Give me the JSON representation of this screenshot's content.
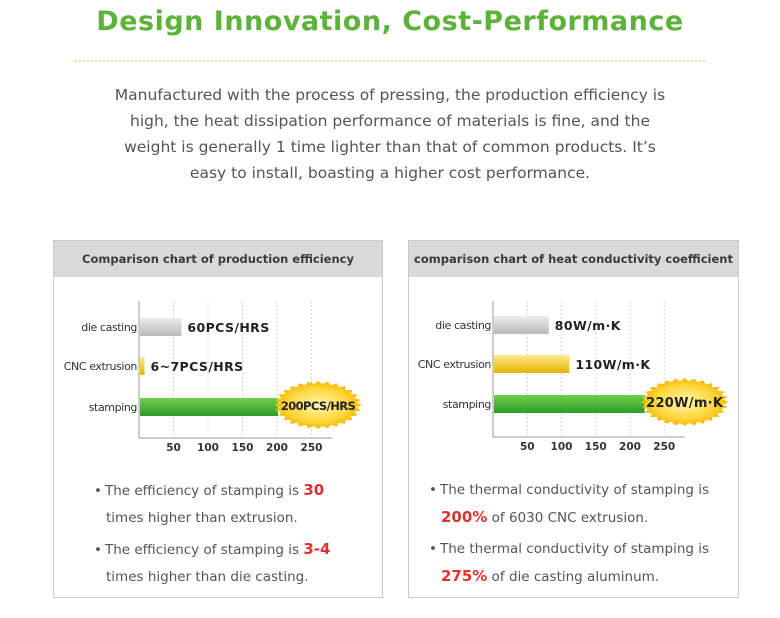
{
  "title": "Design Innovation, Cost-Performance",
  "intro": [
    "Manufactured with the process of pressing, the production efficiency is",
    "high, the heat dissipation performance of materials is fine, and the",
    "weight is generally 1 time lighter than that of common products. It’s",
    "easy to install, boasting a higher cost performance."
  ],
  "colors": {
    "accent_green": "#5db33a",
    "highlight_red": "#e0322f",
    "bar_gray": "#c8c8c8",
    "bar_yellow": "#f2c200",
    "bar_green": "#3ea836"
  },
  "chart_data": [
    {
      "type": "bar",
      "orientation": "horizontal",
      "title": "Comparison chart of production efficiency",
      "categories": [
        "die casting",
        "CNC extrusion",
        "stamping"
      ],
      "values": [
        60,
        6.5,
        200
      ],
      "value_labels": [
        "60PCS/HRS",
        "6~7PCS/HRS",
        "200PCS/HRS"
      ],
      "xticks": [
        50,
        100,
        150,
        200,
        250
      ],
      "xlim": [
        0,
        280
      ],
      "grid": true,
      "highlight_index": 2
    },
    {
      "type": "bar",
      "orientation": "horizontal",
      "title": "comparison chart of heat conductivity coefficient",
      "categories": [
        "die casting",
        "CNC extrusion",
        "stamping"
      ],
      "values": [
        80,
        110,
        220
      ],
      "value_labels": [
        "80W/m·K",
        "110W/m·K",
        "220W/m·K"
      ],
      "xticks": [
        50,
        100,
        150,
        200,
        250
      ],
      "xlim": [
        0,
        280
      ],
      "grid": true,
      "highlight_index": 2
    }
  ],
  "notes_left": [
    {
      "pre": "The efficiency of stamping is ",
      "hl": "30",
      "post": "times higher than extrusion."
    },
    {
      "pre": "The efficiency of stamping is ",
      "hl": "3-4",
      "post": "times higher than die casting."
    }
  ],
  "notes_right": [
    {
      "pre": "The thermal conductivity of stamping is",
      "hl": "200%",
      "post": " of 6030 CNC extrusion."
    },
    {
      "pre": "The thermal conductivity of stamping is",
      "hl": "275%",
      "post": " of die casting aluminum."
    }
  ],
  "bullet": "•"
}
